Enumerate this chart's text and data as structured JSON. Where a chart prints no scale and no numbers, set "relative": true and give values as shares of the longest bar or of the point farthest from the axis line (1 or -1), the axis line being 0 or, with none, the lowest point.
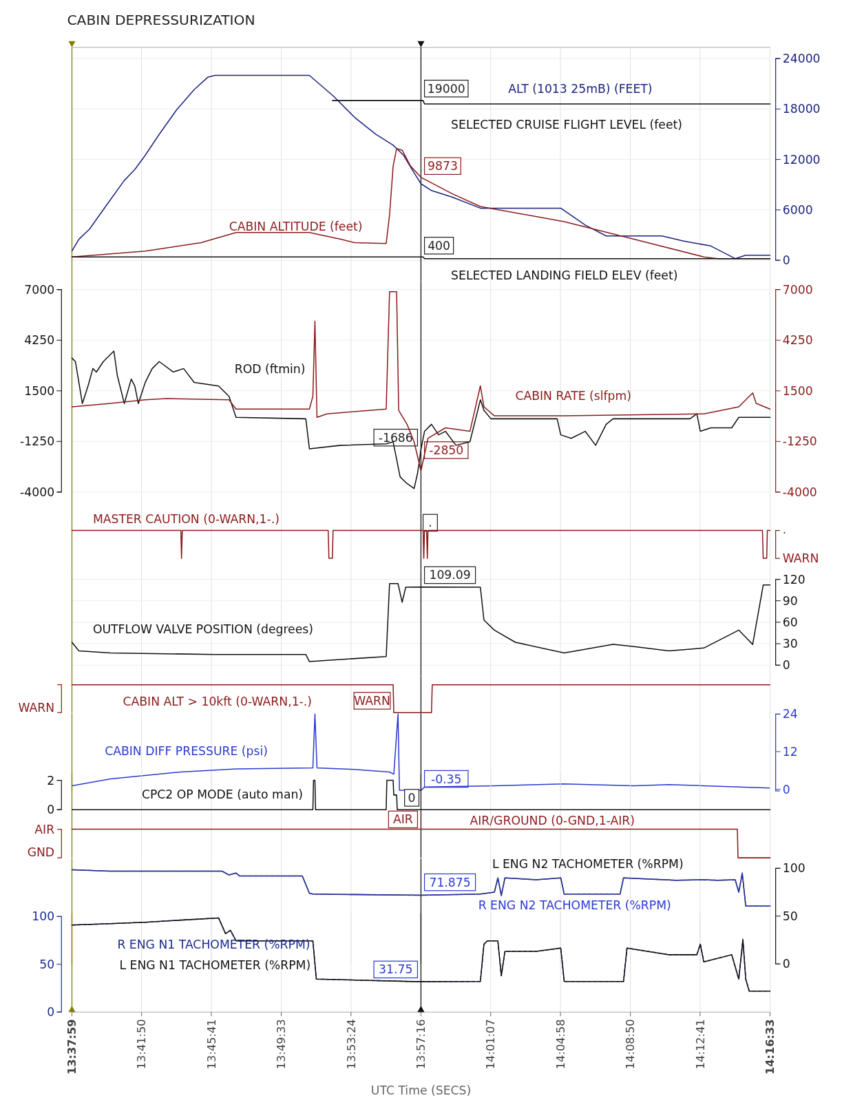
{
  "chart_data": [
    {
      "type": "line",
      "title": "CABIN DEPRESSURIZATION",
      "xlim": [
        13.6331,
        14.2758
      ],
      "xticks": [
        13.6331,
        13.6972,
        13.7614,
        13.8258,
        13.89,
        13.9544,
        14.0186,
        14.0828,
        14.1472,
        14.2114,
        14.2758
      ],
      "y2lim": [
        0,
        24000
      ],
      "y2ticks": [
        0,
        6000,
        12000,
        18000,
        24000
      ],
      "grid": true,
      "tick_labels": "y",
      "ref_lines": [
        {
          "axis": "x",
          "value": 13.6331,
          "color": "#808000"
        },
        {
          "axis": "x",
          "value": 13.9544,
          "color": "#111111"
        }
      ],
      "annotations": [
        "19000",
        "9873",
        "400"
      ],
      "series": [
        {
          "name": "ALT (1013 25mB) (FEET)",
          "color": "#1a237e",
          "axis": "y2",
          "x": [
            13.6331,
            13.6395,
            13.6492,
            13.6652,
            13.6813,
            13.691,
            13.7006,
            13.7135,
            13.7295,
            13.7456,
            13.7584,
            13.7649,
            13.8517,
            13.8741,
            13.8934,
            13.9127,
            13.9288,
            13.9384,
            13.9481,
            13.9545,
            13.9641,
            13.9834,
            14.0091,
            14.0831,
            14.1056,
            14.1249,
            14.1763,
            14.1956,
            14.2213,
            14.2437,
            14.2534,
            14.2758
          ],
          "values": [
            1100,
            2500,
            3700,
            6600,
            9500,
            10800,
            12500,
            15000,
            17900,
            20300,
            21800,
            22000,
            22000,
            19500,
            17000,
            15000,
            13700,
            12500,
            10400,
            9100,
            8300,
            7500,
            6200,
            6200,
            4200,
            2900,
            2900,
            2300,
            1700,
            200,
            600,
            600
          ]
        },
        {
          "name": "CABIN ALTITUDE (feet)",
          "color": "#8b1a1a",
          "axis": "y2",
          "x": [
            13.6331,
            13.7006,
            13.752,
            13.7842,
            13.8517,
            13.8806,
            13.8934,
            13.9224,
            13.9255,
            13.9288,
            13.932,
            13.9371,
            13.9449,
            13.9544,
            13.9834,
            14.0091,
            14.0863,
            14.1506,
            14.2148,
            14.2277,
            14.2758
          ],
          "values": [
            400,
            1100,
            2100,
            3300,
            3300,
            2500,
            2100,
            2000,
            5400,
            11200,
            13300,
            13100,
            11200,
            9873,
            7900,
            6400,
            4600,
            2500,
            400,
            200,
            200
          ]
        },
        {
          "name": "SELECTED CRUISE FLIGHT LEVEL (feet)",
          "color": "#111111",
          "axis": "y2",
          "x": [
            13.8729,
            13.9564,
            13.9577,
            14.2758
          ],
          "values": [
            19000,
            19000,
            18600,
            18600
          ]
        },
        {
          "name": "SELECTED LANDING FIELD ELEV (feet)",
          "color": "#111111",
          "axis": "y2",
          "x": [
            13.6331,
            13.9564,
            13.9577,
            14.2758
          ],
          "values": [
            400,
            400,
            200,
            200
          ]
        }
      ]
    },
    {
      "type": "line",
      "xlim": [
        13.6331,
        14.2758
      ],
      "xticks": [
        13.6331,
        13.6972,
        13.7614,
        13.8258,
        13.89,
        13.9544,
        14.0186,
        14.0828,
        14.1472,
        14.2114,
        14.2758
      ],
      "ylim": [
        -4000,
        7000
      ],
      "yticks": [
        -4000,
        -1250,
        1500,
        4250,
        7000
      ],
      "y2lim": [
        -4000,
        7000
      ],
      "y2ticks": [
        -4000,
        -1250,
        1500,
        4250,
        7000
      ],
      "grid": true,
      "tick_labels": "y",
      "ref_lines": [
        {
          "axis": "x",
          "value": 13.6331,
          "color": "#808000"
        },
        {
          "axis": "x",
          "value": 13.9544,
          "color": "#111111"
        }
      ],
      "annotations": [
        "-1686",
        "-2850"
      ],
      "series": [
        {
          "name": "ROD (ftmin)",
          "color": "#111111",
          "axis": "y",
          "x": [
            13.6331,
            13.6363,
            13.6427,
            13.6479,
            13.6524,
            13.6556,
            13.662,
            13.6685,
            13.6717,
            13.6749,
            13.6813,
            13.6877,
            13.691,
            13.6942,
            13.7006,
            13.707,
            13.7135,
            13.7263,
            13.7359,
            13.7456,
            13.7681,
            13.7777,
            13.7842,
            13.8484,
            13.8517,
            13.8806,
            13.9224,
            13.9288,
            13.932,
            13.9352,
            13.9416,
            13.9481,
            13.9513,
            13.9544,
            13.9577,
            13.9641,
            13.9706,
            13.977,
            13.9866,
            13.9995,
            14.0091,
            14.0124,
            14.0188,
            14.0798,
            14.0831,
            14.0927,
            14.1056,
            14.1152,
            14.1249,
            14.1313,
            14.202,
            14.2084,
            14.2116,
            14.2213,
            14.2405,
            14.247,
            14.2758
          ],
          "values": [
            3280,
            3090,
            810,
            1760,
            2710,
            2520,
            3090,
            3470,
            3660,
            2330,
            810,
            2140,
            1760,
            810,
            1960,
            2710,
            3090,
            2520,
            2710,
            1960,
            1760,
            1200,
            60,
            -20,
            -1650,
            -1460,
            -1380,
            -1270,
            -2220,
            -3170,
            -3540,
            -3810,
            -2980,
            -1686,
            -700,
            -320,
            -890,
            -700,
            -1460,
            -1270,
            1010,
            440,
            -20,
            -20,
            -890,
            -1080,
            -700,
            -1460,
            -320,
            -20,
            -20,
            250,
            -700,
            -510,
            -510,
            60,
            60
          ]
        },
        {
          "name": "CABIN RATE (slfpm)",
          "color": "#8b1a1a",
          "axis": "y2",
          "x": [
            13.6331,
            13.6685,
            13.7006,
            13.7199,
            13.7777,
            13.7842,
            13.8517,
            13.8549,
            13.8568,
            13.8587,
            13.8677,
            13.9224,
            13.9255,
            13.932,
            13.9339,
            13.9416,
            13.9481,
            13.9544,
            13.9609,
            13.977,
            13.9995,
            14.0091,
            14.0124,
            14.022,
            14.0863,
            14.2148,
            14.247,
            14.2598,
            14.263,
            14.2758
          ],
          "values": [
            630,
            820,
            1010,
            1080,
            1010,
            510,
            510,
            1200,
            5290,
            60,
            250,
            510,
            6890,
            6890,
            440,
            -320,
            -1270,
            -2850,
            -1080,
            -510,
            -700,
            1770,
            630,
            140,
            140,
            250,
            630,
            1390,
            820,
            510
          ]
        }
      ]
    },
    {
      "type": "line",
      "relative": true,
      "xlim": [
        13.6331,
        14.2758
      ],
      "xticks": [
        13.6331,
        13.6972,
        13.7614,
        13.8258,
        13.89,
        13.9544,
        14.0186,
        14.0828,
        14.1472,
        14.2114,
        14.2758
      ],
      "grid": "x",
      "tick_labels": false,
      "ref_lines": [
        {
          "axis": "x",
          "value": 13.6331,
          "color": "#808000"
        },
        {
          "axis": "x",
          "value": 13.9544,
          "color": "#111111"
        }
      ],
      "annotations": [
        ".",
        ".",
        "WARN"
      ],
      "series": [
        {
          "name": "MASTER CAUTION (0-WARN,1-.)",
          "color": "#8b1a1a",
          "axis": "y2",
          "x": [
            13.6331,
            13.7334,
            13.734,
            13.7347,
            13.869,
            13.8697,
            13.8729,
            13.8735,
            13.9564,
            13.957,
            13.9577,
            13.9596,
            13.9603,
            13.9609,
            14.2688,
            14.2695,
            14.2727,
            14.2733,
            14.2758
          ],
          "values": [
            1,
            1,
            0,
            1,
            1,
            0,
            0,
            1,
            1,
            0,
            1,
            1,
            0,
            1,
            1,
            0,
            0,
            1,
            1
          ]
        }
      ]
    },
    {
      "type": "line",
      "xlim": [
        13.6331,
        14.2758
      ],
      "xticks": [
        13.6331,
        13.6972,
        13.7614,
        13.8258,
        13.89,
        13.9544,
        14.0186,
        14.0828,
        14.1472,
        14.2114,
        14.2758
      ],
      "y2lim": [
        0,
        120
      ],
      "y2ticks": [
        0,
        30,
        60,
        90,
        120
      ],
      "grid": true,
      "tick_labels": "y",
      "ref_lines": [
        {
          "axis": "x",
          "value": 13.6331,
          "color": "#808000"
        },
        {
          "axis": "x",
          "value": 13.9544,
          "color": "#111111"
        }
      ],
      "annotations": [
        "109.09"
      ],
      "series": [
        {
          "name": "OUTFLOW VALVE POSITION (degrees)",
          "color": "#111111",
          "axis": "y2",
          "x": [
            13.6331,
            13.6395,
            13.6685,
            13.7649,
            13.8484,
            13.8517,
            13.8806,
            13.9224,
            13.9255,
            13.9333,
            13.9371,
            13.9404,
            13.9544,
            14.0091,
            14.0124,
            14.022,
            14.0413,
            14.0863,
            14.1313,
            14.1506,
            14.1827,
            14.2148,
            14.247,
            14.2534,
            14.2598,
            14.2695,
            14.2758
          ],
          "values": [
            32,
            20,
            17,
            15,
            15,
            5,
            8,
            12,
            114,
            114,
            88,
            109,
            109.09,
            109,
            63,
            49,
            32,
            17,
            29,
            26,
            20,
            24,
            49,
            39,
            29,
            112,
            112
          ]
        }
      ]
    },
    {
      "type": "line",
      "relative": true,
      "xlim": [
        13.6331,
        14.2758
      ],
      "xticks": [
        13.6331,
        13.6972,
        13.7614,
        13.8258,
        13.89,
        13.9544,
        14.0186,
        14.0828,
        14.1472,
        14.2114,
        14.2758
      ],
      "grid": "x",
      "tick_labels": false,
      "ref_lines": [
        {
          "axis": "x",
          "value": 13.6331,
          "color": "#808000"
        },
        {
          "axis": "x",
          "value": 13.9544,
          "color": "#111111"
        }
      ],
      "annotations": [
        "WARN",
        "WARN"
      ],
      "series": [
        {
          "name": "CABIN ALT > 10kft (0-WARN,1-.)",
          "color": "#8b1a1a",
          "axis": "y2",
          "x": [
            13.6331,
            13.9288,
            13.9294,
            13.9641,
            13.9648,
            14.2758
          ],
          "values": [
            1,
            1,
            0,
            0,
            1,
            1
          ]
        }
      ]
    },
    {
      "type": "line",
      "xlim": [
        13.6331,
        14.2758
      ],
      "xticks": [
        13.6331,
        13.6972,
        13.7614,
        13.8258,
        13.89,
        13.9544,
        14.0186,
        14.0828,
        14.1472,
        14.2114,
        14.2758
      ],
      "y2lim": [
        -0.5,
        24
      ],
      "y2ticks": [
        0,
        12,
        24
      ],
      "grid": "x",
      "tick_labels": "y",
      "ref_lines": [
        {
          "axis": "x",
          "value": 13.6331,
          "color": "#808000"
        },
        {
          "axis": "x",
          "value": 13.9544,
          "color": "#111111"
        }
      ],
      "annotations": [
        "-0.35"
      ],
      "series": [
        {
          "name": "CABIN DIFF PRESSURE (psi)",
          "color": "#2a3ad0",
          "axis": "y2",
          "x": [
            13.6331,
            13.6685,
            13.7327,
            13.7842,
            13.8549,
            13.8568,
            13.8587,
            13.8934,
            13.9255,
            13.9294,
            13.9333,
            13.9346,
            13.9545,
            13.9577,
            14.022,
            14.0863,
            14.1506,
            14.1827,
            14.2148,
            14.2758
          ],
          "values": [
            1.1,
            3.3,
            5.5,
            6.5,
            6.8,
            24,
            6.8,
            6.3,
            5.5,
            4.8,
            24,
            -0.35,
            -0.35,
            0.7,
            1.1,
            1.7,
            1.1,
            1.5,
            1.1,
            0.4
          ]
        }
      ]
    },
    {
      "type": "line",
      "xlim": [
        13.6331,
        14.2758
      ],
      "xticks": [
        13.6331,
        13.6972,
        13.7614,
        13.8258,
        13.89,
        13.9544,
        14.0186,
        14.0828,
        14.1472,
        14.2114,
        14.2758
      ],
      "ylim": [
        0,
        2
      ],
      "yticks": [
        0,
        2
      ],
      "grid": "x",
      "tick_labels": "y",
      "ref_lines": [
        {
          "axis": "x",
          "value": 13.6331,
          "color": "#808000"
        },
        {
          "axis": "x",
          "value": 13.9544,
          "color": "#111111"
        }
      ],
      "annotations": [
        "0"
      ],
      "series": [
        {
          "name": "CPC2 OP MODE (auto man)",
          "color": "#111111",
          "axis": "y",
          "x": [
            13.6331,
            13.8549,
            13.8555,
            13.8568,
            13.8574,
            13.9224,
            13.923,
            13.9288,
            13.9294,
            13.932,
            13.9326,
            14.2758
          ],
          "values": [
            0,
            0,
            2,
            2,
            0,
            0,
            2,
            2,
            1,
            1,
            0,
            0
          ]
        }
      ]
    },
    {
      "type": "line",
      "relative": true,
      "xlim": [
        13.6331,
        14.2758
      ],
      "xticks": [
        13.6331,
        13.6972,
        13.7614,
        13.8258,
        13.89,
        13.9544,
        14.0186,
        14.0828,
        14.1472,
        14.2114,
        14.2758
      ],
      "grid": "x",
      "tick_labels": false,
      "ref_lines": [
        {
          "axis": "x",
          "value": 13.6331,
          "color": "#808000"
        },
        {
          "axis": "x",
          "value": 13.9544,
          "color": "#111111"
        }
      ],
      "annotations": [
        "AIR",
        "AIR",
        "GND"
      ],
      "series": [
        {
          "name": "AIR/GROUND (0-GND,1-AIR)",
          "color": "#8b1a1a",
          "axis": "y2",
          "x": [
            13.6331,
            14.2457,
            14.2463,
            14.2758
          ],
          "values": [
            1,
            1,
            0,
            0
          ]
        }
      ]
    },
    {
      "type": "line",
      "xlim": [
        13.6331,
        14.2758
      ],
      "xticks": [
        13.6331,
        13.6972,
        13.7614,
        13.8258,
        13.89,
        13.9544,
        14.0186,
        14.0828,
        14.1472,
        14.2114,
        14.2758
      ],
      "y2lim": [
        0,
        100
      ],
      "y2ticks": [
        0,
        50,
        100
      ],
      "grid": "x",
      "tick_labels": "y",
      "ref_lines": [
        {
          "axis": "x",
          "value": 13.6331,
          "color": "#808000"
        },
        {
          "axis": "x",
          "value": 13.9544,
          "color": "#111111"
        }
      ],
      "annotations": [
        "71.875"
      ],
      "series": [
        {
          "name": "L ENG N2 TACHOMETER (%RPM)",
          "color": "#111111",
          "axis": "y2",
          "x": [
            13.6331,
            13.6685,
            13.7713,
            13.7777,
            13.7842,
            13.7874,
            13.8452,
            13.8517,
            13.8549,
            13.9545,
            14.0091,
            14.022,
            14.0252,
            14.0284,
            14.0317,
            14.0606,
            14.0831,
            14.0863,
            14.1377,
            14.1409,
            14.1891,
            14.2148,
            14.2277,
            14.2437,
            14.247,
            14.2502,
            14.2534,
            14.2758
          ],
          "values": [
            98.5,
            97,
            97,
            93,
            95,
            92,
            92,
            74,
            73,
            71.875,
            73,
            75,
            90,
            71.5,
            90,
            88,
            90,
            73,
            73,
            90,
            87.5,
            88,
            87.5,
            88,
            75,
            95,
            60.5,
            60.5
          ]
        },
        {
          "name": "R ENG N2 TACHOMETER (%RPM)",
          "color": "#2a3ad0",
          "axis": "y2",
          "line_style": "dashed",
          "x": [
            13.6331,
            13.6685,
            13.7713,
            13.7777,
            13.7842,
            13.7874,
            13.8452,
            13.8517,
            13.8549,
            13.9545,
            14.0091,
            14.022,
            14.0252,
            14.0284,
            14.0317,
            14.0606,
            14.0831,
            14.0863,
            14.1377,
            14.1409,
            14.1891,
            14.2148,
            14.2277,
            14.2437,
            14.247,
            14.2502,
            14.2534,
            14.2758
          ],
          "values": [
            98.5,
            97,
            97,
            93,
            95,
            92,
            92,
            74,
            73,
            71.875,
            73,
            75,
            90,
            71.5,
            90,
            88,
            90,
            73,
            73,
            90,
            87.5,
            88,
            87.5,
            88,
            75,
            95,
            60.5,
            60.5
          ]
        }
      ]
    },
    {
      "type": "line",
      "xlabel": "UTC Time (SECS)",
      "xlim": [
        13.6331,
        14.2758
      ],
      "xticks": [
        {
          "value": 13.6331,
          "label": "13:37:59"
        },
        {
          "value": 13.6972,
          "label": "13:41:50"
        },
        {
          "value": 13.7614,
          "label": "13:45:41"
        },
        {
          "value": 13.8258,
          "label": "13:49:33"
        },
        {
          "value": 13.89,
          "label": "13:53:24"
        },
        {
          "value": 13.9544,
          "label": "13:57:16"
        },
        {
          "value": 14.0186,
          "label": "14:01:07"
        },
        {
          "value": 14.0828,
          "label": "14:04:58"
        },
        {
          "value": 14.1472,
          "label": "14:08:50"
        },
        {
          "value": 14.2114,
          "label": "14:12:41"
        },
        {
          "value": 14.2758,
          "label": "14:16:33"
        }
      ],
      "ylim": [
        0,
        100
      ],
      "yticks": [
        0,
        50,
        100
      ],
      "grid": "x",
      "ref_lines": [
        {
          "axis": "x",
          "value": 13.6331,
          "color": "#808000"
        },
        {
          "axis": "x",
          "value": 13.9544,
          "color": "#111111"
        }
      ],
      "annotations": [
        "31.75"
      ],
      "series": [
        {
          "name": "R ENG N1 TACHOMETER (%RPM)",
          "color": "#1a2a8e",
          "axis": "y",
          "line_style": "dashed",
          "x": [
            13.6331,
            13.6685,
            13.7006,
            13.7681,
            13.7745,
            13.779,
            13.7842,
            13.8549,
            13.8581,
            13.9545,
            14.0091,
            14.0124,
            14.0156,
            14.0252,
            14.0284,
            14.0317,
            14.0606,
            14.0831,
            14.0863,
            14.1409,
            14.1441,
            14.1827,
            14.2084,
            14.2116,
            14.2148,
            14.2405,
            14.247,
            14.2508,
            14.2534,
            14.2566,
            14.2758
          ],
          "values": [
            91,
            92.5,
            94,
            98.5,
            82,
            85.5,
            74.5,
            74.5,
            34.5,
            31.75,
            32,
            71,
            74.5,
            74.5,
            38,
            63.5,
            63.5,
            67,
            32,
            32,
            67,
            60,
            60,
            71,
            52.5,
            60,
            34.5,
            76,
            34.5,
            22,
            22
          ]
        },
        {
          "name": "L ENG N1 TACHOMETER (%RPM)",
          "color": "#111111",
          "axis": "y",
          "x": [
            13.6331,
            13.6685,
            13.7006,
            13.7681,
            13.7745,
            13.779,
            13.7842,
            13.8549,
            13.8581,
            13.9545,
            14.0091,
            14.0124,
            14.0156,
            14.0252,
            14.0284,
            14.0317,
            14.0606,
            14.0831,
            14.0863,
            14.1409,
            14.1441,
            14.1827,
            14.2084,
            14.2116,
            14.2148,
            14.2405,
            14.247,
            14.2508,
            14.2534,
            14.2566,
            14.2758
          ],
          "values": [
            91,
            92.5,
            94,
            98.5,
            82,
            85.5,
            74.5,
            74.5,
            34.5,
            31.75,
            32,
            71,
            74.5,
            74.5,
            38,
            63.5,
            63.5,
            67,
            32,
            32,
            67,
            60,
            60,
            71,
            52.5,
            60,
            34.5,
            76,
            34.5,
            22,
            22
          ]
        }
      ]
    }
  ]
}
